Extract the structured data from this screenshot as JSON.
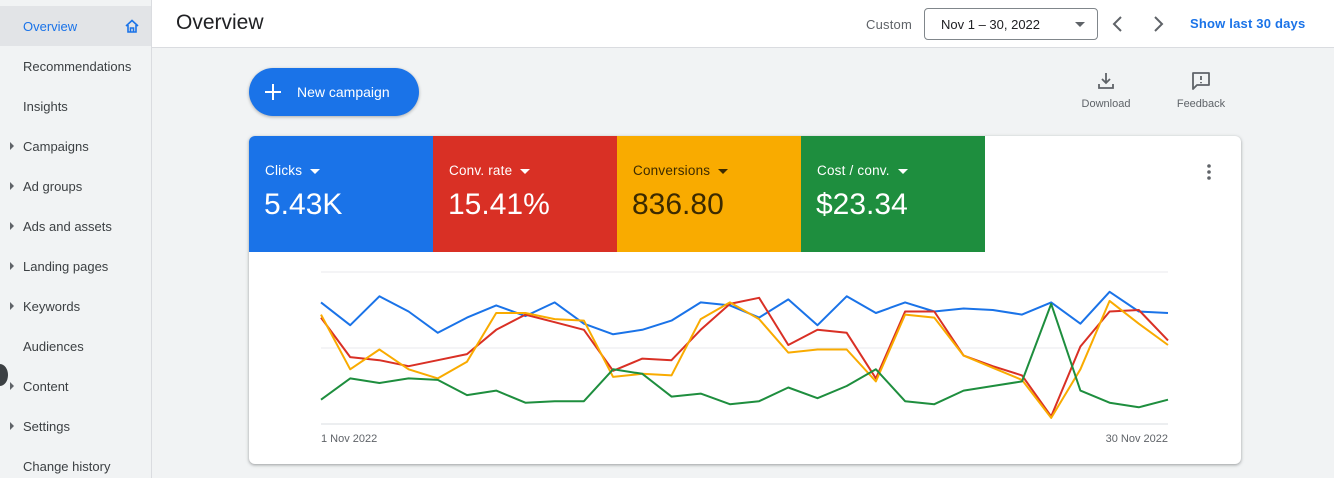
{
  "sidebar": {
    "items": [
      {
        "label": "Overview",
        "active": true,
        "expandable": false
      },
      {
        "label": "Recommendations",
        "active": false,
        "expandable": false
      },
      {
        "label": "Insights",
        "active": false,
        "expandable": false
      },
      {
        "label": "Campaigns",
        "active": false,
        "expandable": true
      },
      {
        "label": "Ad groups",
        "active": false,
        "expandable": true
      },
      {
        "label": "Ads and assets",
        "active": false,
        "expandable": true
      },
      {
        "label": "Landing pages",
        "active": false,
        "expandable": true
      },
      {
        "label": "Keywords",
        "active": false,
        "expandable": true
      },
      {
        "label": "Audiences",
        "active": false,
        "expandable": false
      },
      {
        "label": "Content",
        "active": false,
        "expandable": true
      },
      {
        "label": "Settings",
        "active": false,
        "expandable": true
      },
      {
        "label": "Change history",
        "active": false,
        "expandable": false
      }
    ]
  },
  "header": {
    "title": "Overview",
    "custom_label": "Custom",
    "date_range": "Nov 1 – 30, 2022",
    "show_last": "Show last 30 days"
  },
  "toolbar": {
    "new_campaign": "New campaign",
    "download": "Download",
    "feedback": "Feedback"
  },
  "metrics": [
    {
      "label": "Clicks",
      "value": "5.43K",
      "color": "#1a73e8"
    },
    {
      "label": "Conv. rate",
      "value": "15.41%",
      "color": "#d93025"
    },
    {
      "label": "Conversions",
      "value": "836.80",
      "color": "#f9ab00"
    },
    {
      "label": "Cost / conv.",
      "value": "$23.34",
      "color": "#1e8e3e"
    }
  ],
  "chart_data": {
    "type": "line",
    "x_start_label": "1 Nov 2022",
    "x_end_label": "30 Nov 2022",
    "grid": true,
    "ylim": [
      0,
      100
    ],
    "series": [
      {
        "color": "#1a73e8",
        "values": [
          80,
          65,
          84,
          74,
          60,
          70,
          78,
          71,
          80,
          66,
          59,
          62,
          68,
          80,
          78,
          70,
          82,
          65,
          84,
          73,
          80,
          74,
          76,
          75,
          72,
          80,
          66,
          87,
          74,
          73
        ]
      },
      {
        "color": "#d93025",
        "values": [
          70,
          44,
          42,
          38,
          42,
          46,
          62,
          72,
          67,
          62,
          35,
          43,
          42,
          62,
          79,
          83,
          52,
          62,
          60,
          30,
          74,
          74,
          45,
          38,
          32,
          5,
          51,
          74,
          75,
          55
        ]
      },
      {
        "color": "#f9ab00",
        "values": [
          72,
          36,
          49,
          36,
          30,
          41,
          73,
          73,
          69,
          68,
          31,
          33,
          32,
          69,
          80,
          69,
          47,
          49,
          49,
          28,
          72,
          70,
          45,
          37,
          29,
          4,
          36,
          81,
          66,
          52
        ]
      },
      {
        "color": "#1e8e3e",
        "values": [
          16,
          30,
          27,
          30,
          29,
          19,
          22,
          14,
          15,
          15,
          36,
          33,
          18,
          20,
          13,
          15,
          24,
          17,
          25,
          36,
          15,
          13,
          22,
          25,
          28,
          79,
          22,
          14,
          11,
          16
        ]
      }
    ]
  }
}
